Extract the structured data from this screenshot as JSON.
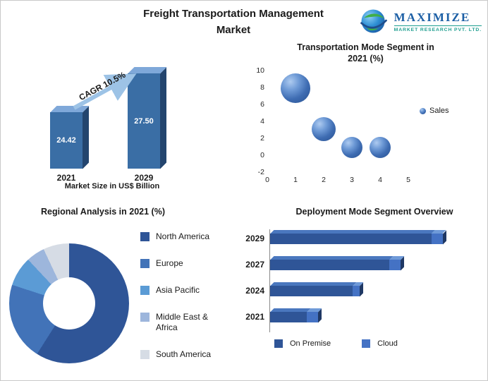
{
  "header": {
    "title_line1": "Freight Transportation Management",
    "title_line2": "Market"
  },
  "logo": {
    "brand": "MAXIMIZE",
    "subtitle": "MARKET RESEARCH PVT. LTD."
  },
  "colors": {
    "bar_front": "#3A6EA5",
    "bar_top": "#7FA8D9",
    "bar_side": "#23456E",
    "growth_arrow": "#9DC3E6",
    "on_premise": "#2F5597",
    "cloud": "#4472C4"
  },
  "chart_data": [
    {
      "id": "market_size",
      "type": "bar",
      "categories": [
        "2021",
        "2029"
      ],
      "values": [
        24.42,
        27.5
      ],
      "value_labels": [
        "24.42",
        "27.50"
      ],
      "annotation": "CAGR 10.5%",
      "xlabel": "Market Size in US$ Billion",
      "unit": "US$ Billion"
    },
    {
      "id": "transportation_mode",
      "type": "scatter",
      "title_line1": "Transportation Mode Segment in",
      "title_line2": "2021 (%)",
      "points": [
        {
          "x": 1,
          "y": 8,
          "r": 21
        },
        {
          "x": 2,
          "y": 3.2,
          "r": 17
        },
        {
          "x": 3,
          "y": 1,
          "r": 15
        },
        {
          "x": 4,
          "y": 1,
          "r": 15
        }
      ],
      "x_ticks": [
        0,
        1,
        2,
        3,
        4,
        5
      ],
      "y_ticks": [
        10,
        8,
        6,
        4,
        2,
        0,
        -2
      ],
      "xlim": [
        0,
        5.5
      ],
      "ylim": [
        -2,
        10
      ],
      "legend": [
        "Sales"
      ],
      "legend_position": "right"
    },
    {
      "id": "regional_analysis",
      "type": "pie",
      "title": "Regional Analysis in 2021 (%)",
      "labels": [
        "North America",
        "Europe",
        "Asia Pacific",
        "Middle East & Africa",
        "South America"
      ],
      "values": [
        59,
        21,
        8,
        5,
        7
      ],
      "colors": [
        "#2F5597",
        "#4273B8",
        "#5B9BD5",
        "#9DB6DC",
        "#D6DCE5"
      ],
      "donut": true,
      "legend_position": "right"
    },
    {
      "id": "deployment_mode",
      "type": "bar",
      "orientation": "horizontal",
      "stacked": true,
      "title": "Deployment Mode Segment Overview",
      "categories": [
        "2029",
        "2027",
        "2024",
        "2021"
      ],
      "series": [
        {
          "name": "On Premise",
          "color": "#2F5597",
          "values": [
            88,
            65,
            45,
            20
          ]
        },
        {
          "name": "Cloud",
          "color": "#4472C4",
          "values": [
            6,
            6,
            4,
            6
          ]
        }
      ],
      "legend_position": "bottom"
    }
  ]
}
